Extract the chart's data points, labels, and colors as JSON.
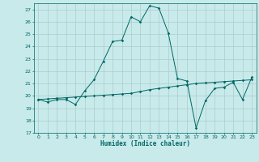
{
  "xlabel": "Humidex (Indice chaleur)",
  "ylabel": "",
  "background_color": "#c8eaea",
  "grid_color": "#aacccc",
  "line_color": "#006666",
  "xlim": [
    -0.5,
    23.5
  ],
  "ylim": [
    17,
    27.5
  ],
  "yticks": [
    17,
    18,
    19,
    20,
    21,
    22,
    23,
    24,
    25,
    26,
    27
  ],
  "xticks": [
    0,
    1,
    2,
    3,
    4,
    5,
    6,
    7,
    8,
    9,
    10,
    11,
    12,
    13,
    14,
    15,
    16,
    17,
    18,
    19,
    20,
    21,
    22,
    23
  ],
  "curve1_x": [
    0,
    1,
    2,
    3,
    4,
    5,
    6,
    7,
    8,
    9,
    10,
    11,
    12,
    13,
    14,
    15,
    16,
    17,
    18,
    19,
    20,
    21,
    22,
    23
  ],
  "curve1_y": [
    19.7,
    19.5,
    19.7,
    19.7,
    19.3,
    20.4,
    21.3,
    22.8,
    24.4,
    24.5,
    26.4,
    26.0,
    27.3,
    27.1,
    25.1,
    21.4,
    21.2,
    17.4,
    19.6,
    20.6,
    20.7,
    21.1,
    19.7,
    21.5
  ],
  "curve2_x": [
    0,
    1,
    2,
    3,
    4,
    5,
    6,
    7,
    8,
    9,
    10,
    11,
    12,
    13,
    14,
    15,
    16,
    17,
    18,
    19,
    20,
    21,
    22,
    23
  ],
  "curve2_y": [
    19.7,
    19.75,
    19.8,
    19.85,
    19.9,
    19.95,
    20.0,
    20.05,
    20.1,
    20.15,
    20.2,
    20.35,
    20.5,
    20.6,
    20.7,
    20.8,
    20.9,
    21.0,
    21.05,
    21.1,
    21.15,
    21.2,
    21.25,
    21.3
  ]
}
